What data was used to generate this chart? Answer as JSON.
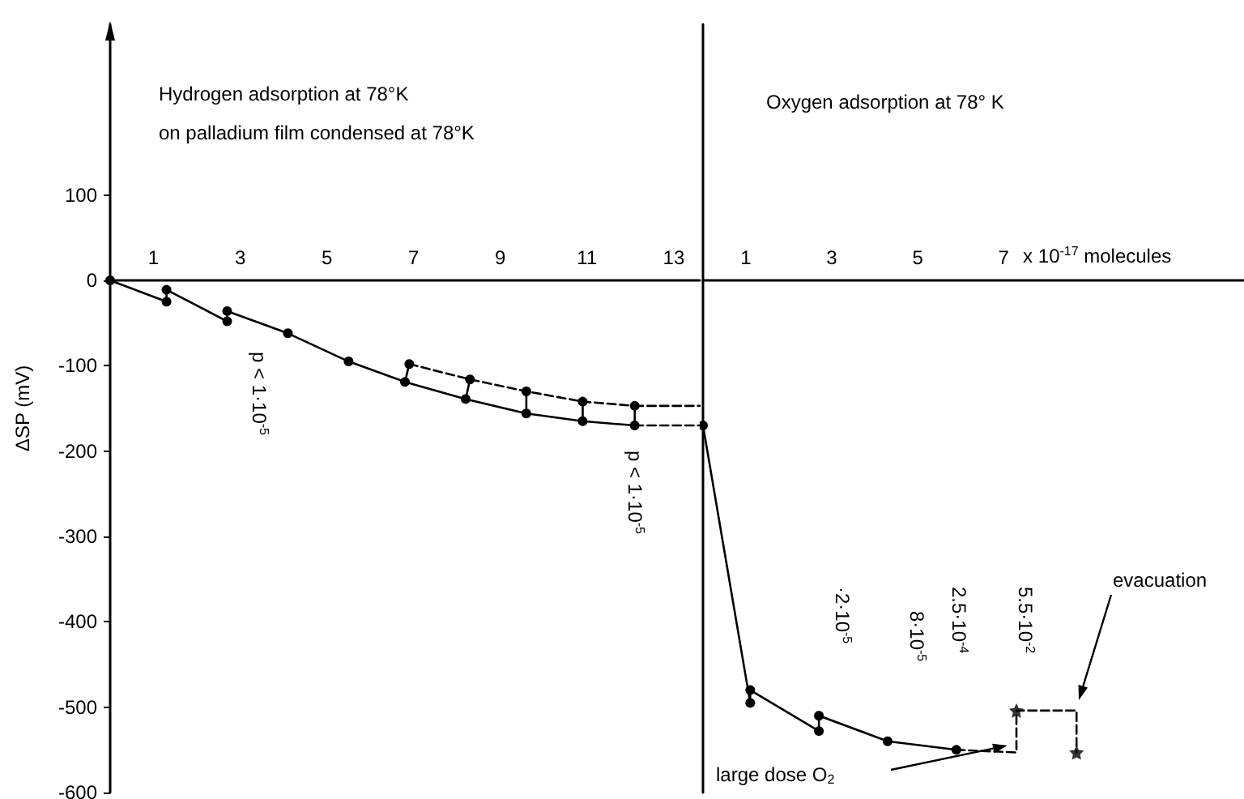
{
  "chart_data": [
    {
      "type": "line",
      "title": "Hydrogen adsorption at 78°K",
      "subtitle": "on palladium film condensed at 78°K",
      "ylabel": "ΔSP (mV)",
      "xlim": [
        0,
        13.6
      ],
      "xticks": [
        1,
        3,
        5,
        7,
        9,
        11,
        13
      ],
      "ylim": [
        -600,
        300
      ],
      "yticks": [
        -600,
        -500,
        -400,
        -300,
        -200,
        -100,
        0,
        100
      ],
      "series": [
        {
          "color": "#000000",
          "marker": "circle",
          "line_style": "solid",
          "x": [
            0,
            1.3,
            1.3,
            2.7,
            2.7,
            4.1,
            5.5,
            6.8,
            8.2,
            9.6,
            10.9,
            12.1
          ],
          "values": [
            0,
            -25,
            -11,
            -48,
            -36,
            -62,
            -95,
            -119,
            -139,
            -156,
            -165,
            -170
          ]
        },
        {
          "color": "#000000",
          "marker": "circle",
          "line_style": "dashed",
          "x": [
            6.9,
            8.3,
            9.6,
            10.9,
            12.1
          ],
          "values": [
            -98,
            -116,
            -130,
            -142,
            -147
          ]
        },
        {
          "color": "#000000",
          "marker": "none",
          "line_style": "solid",
          "x": [
            6.8,
            6.9
          ],
          "values": [
            -119,
            -98
          ]
        },
        {
          "color": "#000000",
          "marker": "none",
          "line_style": "solid",
          "x": [
            8.2,
            8.3
          ],
          "values": [
            -139,
            -116
          ]
        },
        {
          "color": "#000000",
          "marker": "none",
          "line_style": "solid",
          "x": [
            9.6,
            9.6
          ],
          "values": [
            -156,
            -130
          ]
        },
        {
          "color": "#000000",
          "marker": "none",
          "line_style": "solid",
          "x": [
            10.9,
            10.9
          ],
          "values": [
            -165,
            -142
          ]
        },
        {
          "color": "#000000",
          "marker": "none",
          "line_style": "solid",
          "x": [
            12.1,
            12.1
          ],
          "values": [
            -170,
            -147
          ]
        },
        {
          "color": "#000000",
          "marker": "none",
          "line_style": "dashed",
          "x": [
            12.1,
            13.6
          ],
          "values": [
            -147,
            -147
          ]
        },
        {
          "color": "#000000",
          "marker": "none",
          "line_style": "dashed",
          "x": [
            12.1,
            13.6
          ],
          "values": [
            -170,
            -170
          ]
        }
      ],
      "annotations": [
        "p < 1·10$^{-5}$",
        "p < 1·10$^{-5}$"
      ]
    },
    {
      "type": "line",
      "title": "Oxygen adsorption at 78° K",
      "xlabel": "x 10$^{-17}$ molecules",
      "xlim": [
        0,
        12.6
      ],
      "xticks": [
        1,
        3,
        5,
        7
      ],
      "ylim": [
        -600,
        300
      ],
      "tick_labels": "x",
      "series": [
        {
          "color": "#000000",
          "marker": "circle",
          "line_style": "solid",
          "x": [
            0,
            1.1,
            1.1,
            2.7,
            2.7,
            4.3,
            5.9
          ],
          "values": [
            -170,
            -495,
            -480,
            -528,
            -510,
            -540,
            -550
          ]
        },
        {
          "color": "#000000",
          "marker": "none",
          "line_style": "dashed",
          "x": [
            5.9,
            7.3,
            7.3,
            8.7,
            8.7
          ],
          "values": [
            -550,
            -553,
            -504,
            -504,
            -553
          ]
        },
        {
          "type": "scatter",
          "color": "#000000",
          "marker": "star",
          "x": [
            7.3,
            8.7
          ],
          "values": [
            -504,
            -553
          ]
        }
      ],
      "annotations": [
        "·2·10$^{-5}$",
        "8·10$^{-5}$",
        "2.5·10$^{-4}$",
        "5.5·10$^{-2}$",
        "large dose O$_{2}$",
        "evacuation"
      ]
    }
  ]
}
